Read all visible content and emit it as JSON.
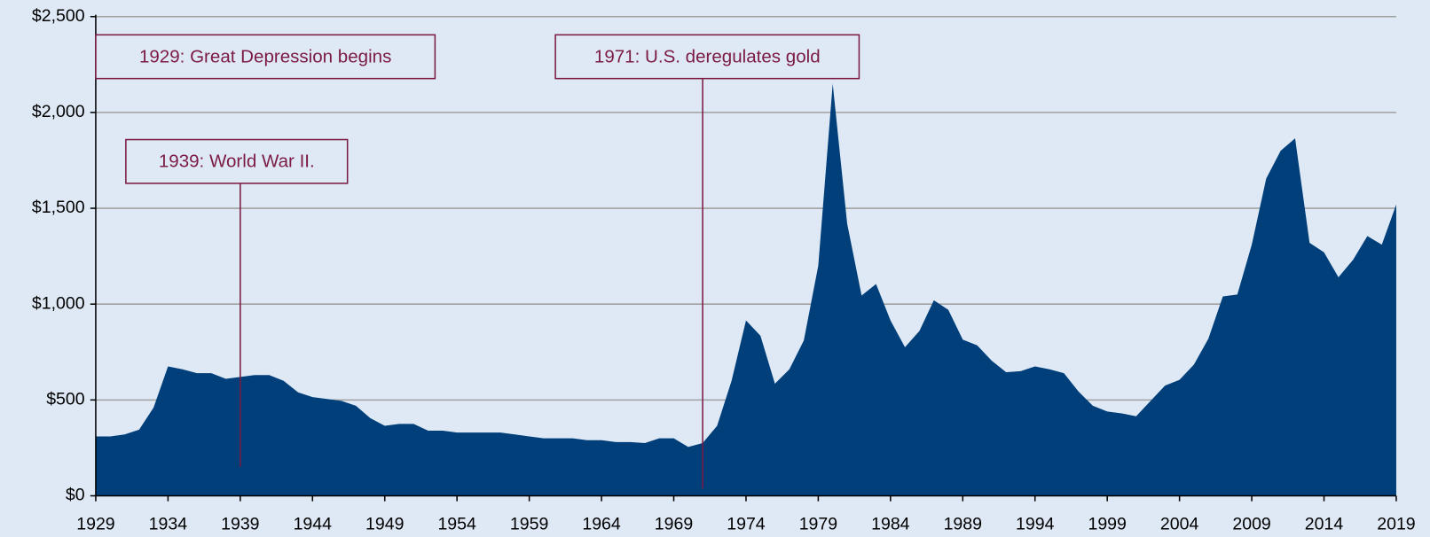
{
  "chart_data": {
    "type": "area",
    "color": "#003f7a",
    "grid": true,
    "x": [
      1929,
      1930,
      1931,
      1932,
      1933,
      1934,
      1935,
      1936,
      1937,
      1938,
      1939,
      1940,
      1941,
      1942,
      1943,
      1944,
      1945,
      1946,
      1947,
      1948,
      1949,
      1950,
      1951,
      1952,
      1953,
      1954,
      1955,
      1956,
      1957,
      1958,
      1959,
      1960,
      1961,
      1962,
      1963,
      1964,
      1965,
      1966,
      1967,
      1968,
      1969,
      1970,
      1971,
      1972,
      1973,
      1974,
      1975,
      1976,
      1977,
      1978,
      1979,
      1980,
      1981,
      1982,
      1983,
      1984,
      1985,
      1986,
      1987,
      1988,
      1989,
      1990,
      1991,
      1992,
      1993,
      1994,
      1995,
      1996,
      1997,
      1998,
      1999,
      2000,
      2001,
      2002,
      2003,
      2004,
      2005,
      2006,
      2007,
      2008,
      2009,
      2010,
      2011,
      2012,
      2013,
      2014,
      2015,
      2016,
      2017,
      2018,
      2019
    ],
    "values": [
      310,
      310,
      320,
      345,
      460,
      675,
      660,
      640,
      640,
      610,
      620,
      630,
      630,
      600,
      540,
      515,
      505,
      495,
      470,
      405,
      365,
      375,
      375,
      340,
      340,
      330,
      330,
      330,
      330,
      320,
      310,
      300,
      300,
      300,
      290,
      290,
      280,
      280,
      275,
      300,
      300,
      255,
      275,
      365,
      600,
      915,
      835,
      585,
      660,
      810,
      1200,
      2150,
      1420,
      1045,
      1105,
      915,
      775,
      860,
      1020,
      970,
      815,
      785,
      705,
      645,
      650,
      675,
      660,
      640,
      545,
      470,
      440,
      430,
      415,
      495,
      575,
      605,
      685,
      820,
      1040,
      1050,
      1310,
      1655,
      1800,
      1865,
      1320,
      1270,
      1140,
      1230,
      1355,
      1310,
      1520
    ],
    "xlim": [
      1929,
      2019
    ],
    "xticks": [
      1929,
      1934,
      1939,
      1944,
      1949,
      1954,
      1959,
      1964,
      1969,
      1974,
      1979,
      1984,
      1989,
      1994,
      1999,
      2004,
      2009,
      2014,
      2019
    ],
    "ylim": [
      0,
      2500
    ],
    "yticks": [
      {
        "value": 0,
        "label": "$0"
      },
      {
        "value": 500,
        "label": "$500"
      },
      {
        "value": 1000,
        "label": "$1,000"
      },
      {
        "value": 1500,
        "label": "$1,500"
      },
      {
        "value": 2000,
        "label": "$2,000"
      },
      {
        "value": 2500,
        "label": "$2,500"
      }
    ],
    "annotations": [
      {
        "text": "1929: Great Depression begins",
        "x": 1929
      },
      {
        "text": "1939: World War II.",
        "x": 1939
      },
      {
        "text": "1971: U.S. deregulates gold",
        "x": 1971
      }
    ]
  }
}
